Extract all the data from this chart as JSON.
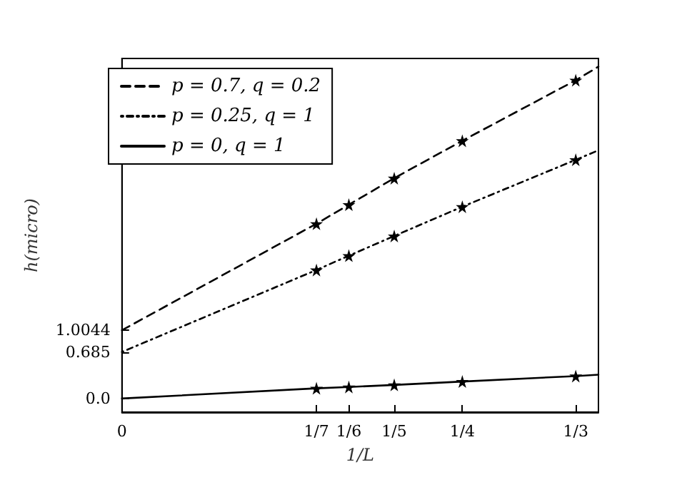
{
  "chart_data": {
    "type": "line",
    "xlabel": "1/L",
    "ylabel": "h(micro)",
    "xlim": [
      0,
      0.35
    ],
    "ylim": [
      -0.2,
      5.0
    ],
    "xticks": [
      0,
      {
        "value": 0.142857,
        "label": "1/7"
      },
      {
        "value": 0.166667,
        "label": "1/6"
      },
      {
        "value": 0.2,
        "label": "1/5"
      },
      {
        "value": 0.25,
        "label": "1/4"
      },
      {
        "value": 0.333333,
        "label": "1/3"
      }
    ],
    "yticks": [
      {
        "value": 0,
        "label": "0.0"
      },
      0.685,
      1.0044
    ],
    "grid": false,
    "legend": "top left",
    "series": [
      {
        "name": "p = 0.7, q = 0.2",
        "color": "#000000",
        "line_style": "dashed",
        "marker": "none",
        "x": [
          0,
          0.142857,
          0.166667,
          0.2,
          0.25,
          0.333333,
          0.35
        ],
        "values": [
          1.0044,
          2.57,
          2.85,
          3.24,
          3.79,
          4.68,
          4.88
        ]
      },
      {
        "name": "p = 0.25, q = 1",
        "color": "#000000",
        "line_style": "dotted",
        "marker": "none",
        "x": [
          0,
          0.142857,
          0.166667,
          0.2,
          0.25,
          0.333333,
          0.35
        ],
        "values": [
          0.685,
          1.89,
          2.1,
          2.39,
          2.82,
          3.51,
          3.65
        ]
      },
      {
        "name": "p = 0, q = 1",
        "color": "#000000",
        "line_style": "solid",
        "marker": "none",
        "x": [
          0,
          0.142857,
          0.166667,
          0.2,
          0.25,
          0.333333,
          0.35
        ],
        "values": [
          0,
          0.15,
          0.17,
          0.2,
          0.25,
          0.33,
          0.35
        ]
      },
      {
        "type": "scatter",
        "color": "#000000",
        "marker": "star",
        "x": [
          0.142857,
          0.166667,
          0.2,
          0.25,
          0.333333
        ],
        "values": [
          2.57,
          2.85,
          3.24,
          3.79,
          4.68
        ]
      },
      {
        "type": "scatter",
        "color": "#000000",
        "marker": "star",
        "x": [
          0.142857,
          0.166667,
          0.2,
          0.25,
          0.333333
        ],
        "values": [
          1.89,
          2.1,
          2.39,
          2.82,
          3.51
        ]
      },
      {
        "type": "scatter",
        "color": "#000000",
        "marker": "star",
        "x": [
          0.142857,
          0.166667,
          0.2,
          0.25,
          0.333333
        ],
        "values": [
          0.15,
          0.17,
          0.2,
          0.25,
          0.33
        ]
      }
    ]
  }
}
